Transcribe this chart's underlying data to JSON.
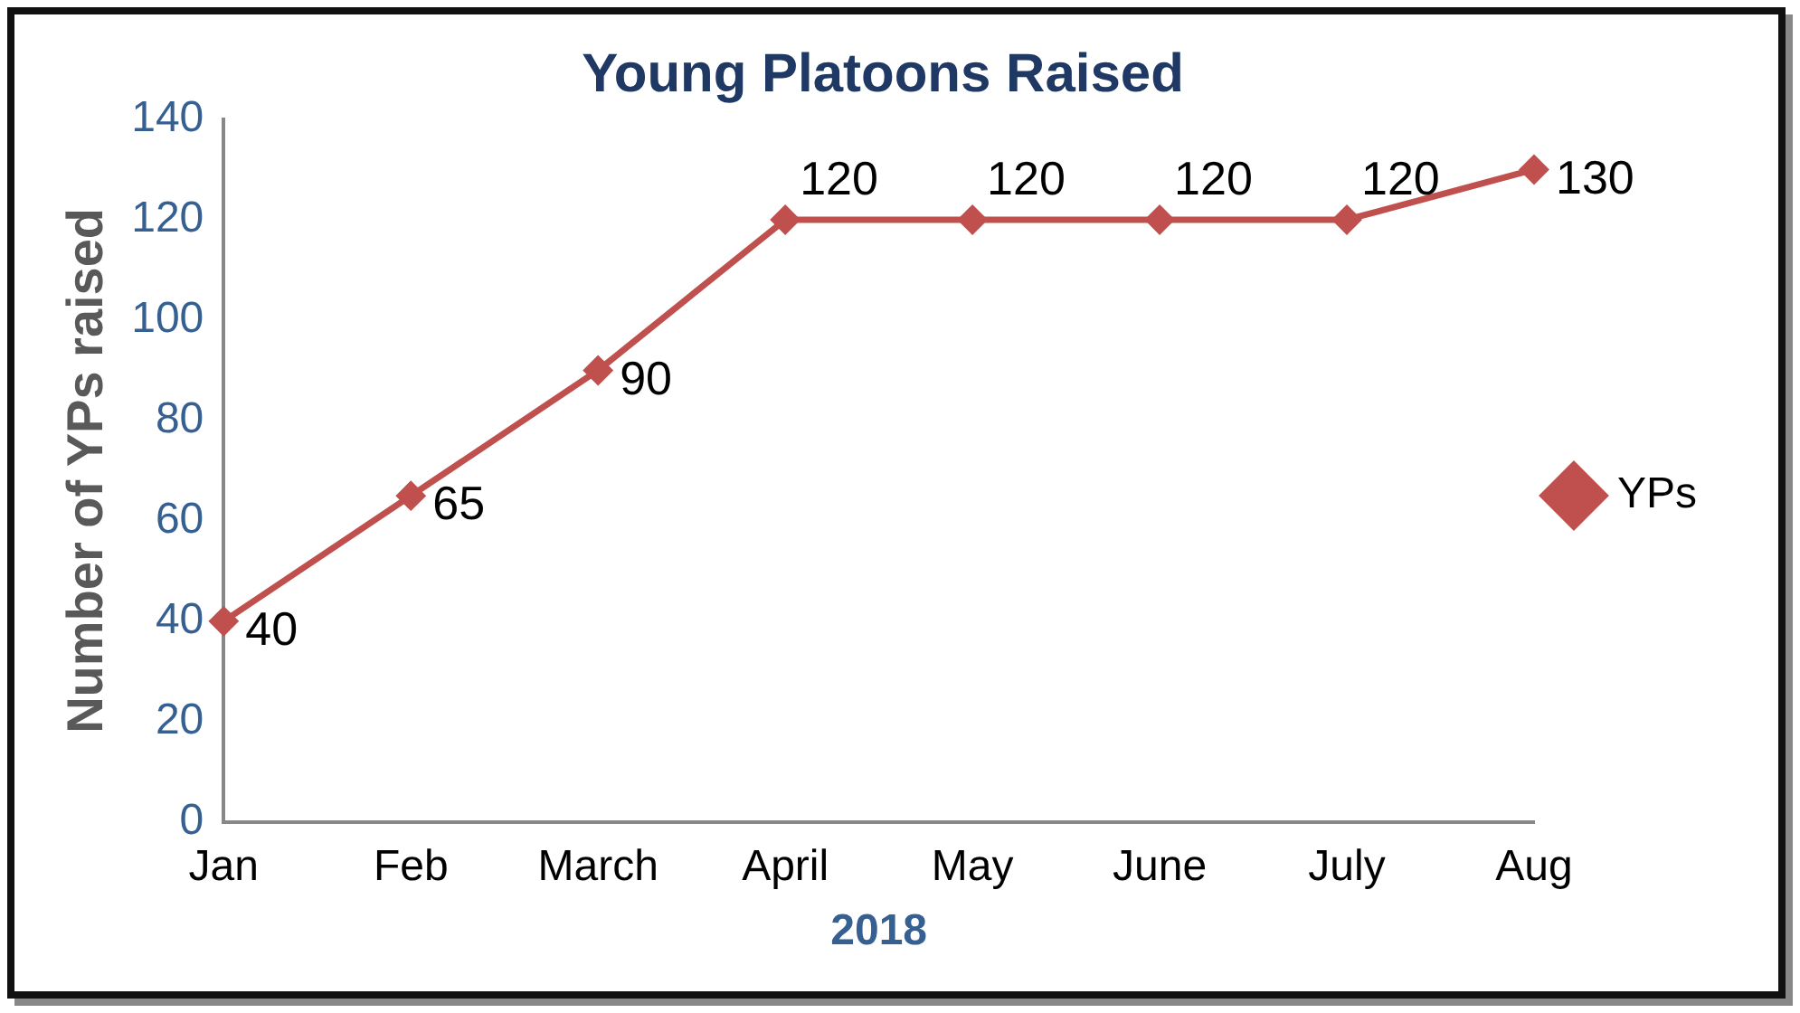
{
  "chart_data": {
    "type": "line",
    "title": "Young Platoons Raised",
    "xlabel": "2018",
    "ylabel": "Number of YPs raised",
    "categories": [
      "Jan",
      "Feb",
      "March",
      "April",
      "May",
      "June",
      "July",
      "Aug"
    ],
    "series": [
      {
        "name": "YPs",
        "color": "#c0504d",
        "values": [
          40,
          65,
          90,
          120,
          120,
          120,
          120,
          130
        ]
      }
    ],
    "ylim": [
      0,
      140
    ],
    "yticks": [
      0,
      20,
      40,
      60,
      80,
      100,
      120,
      140
    ],
    "grid": false,
    "legend": "right",
    "marker": "diamond",
    "line_style": "solid",
    "data_labels": true
  }
}
